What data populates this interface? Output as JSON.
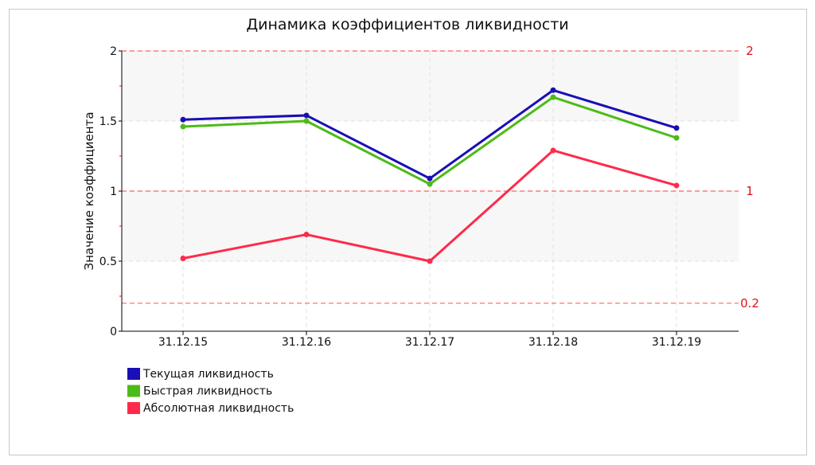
{
  "chart_data": {
    "type": "line",
    "title": "Динамика коэффициентов ликвидности",
    "xlabel": "",
    "ylabel": "Значение коэффициента",
    "categories": [
      "31.12.15",
      "31.12.16",
      "31.12.17",
      "31.12.18",
      "31.12.19"
    ],
    "ylim": [
      0,
      2
    ],
    "yticks": [
      {
        "value": 0,
        "label": "0"
      },
      {
        "value": 0.5,
        "label": "0.5"
      },
      {
        "value": 1,
        "label": "1"
      },
      {
        "value": 1.5,
        "label": "1.5"
      },
      {
        "value": 2,
        "label": "2"
      }
    ],
    "grid": true,
    "legend_position": "bottom-left",
    "series": [
      {
        "name": "Текущая ликвидность",
        "color": "#1a0fb5",
        "values": [
          1.51,
          1.54,
          1.09,
          1.72,
          1.45
        ]
      },
      {
        "name": "Быстрая ликвидность",
        "color": "#4cbb17",
        "values": [
          1.46,
          1.5,
          1.05,
          1.67,
          1.38
        ]
      },
      {
        "name": "Абсолютная ликвидность",
        "color": "#ff2a4a",
        "values": [
          0.52,
          0.69,
          0.5,
          1.29,
          1.04
        ]
      }
    ],
    "reference_lines": [
      {
        "value": 2,
        "label": "2",
        "color": "#ff4a4a"
      },
      {
        "value": 1,
        "label": "1",
        "color": "#ff4a4a"
      },
      {
        "value": 0.2,
        "label": "0.2",
        "color": "#ff4a4a"
      }
    ],
    "shaded_bands": [
      {
        "from": 1.5,
        "to": 2,
        "color": "#f7f7f7"
      },
      {
        "from": 0.5,
        "to": 1,
        "color": "#f7f7f7"
      }
    ]
  }
}
